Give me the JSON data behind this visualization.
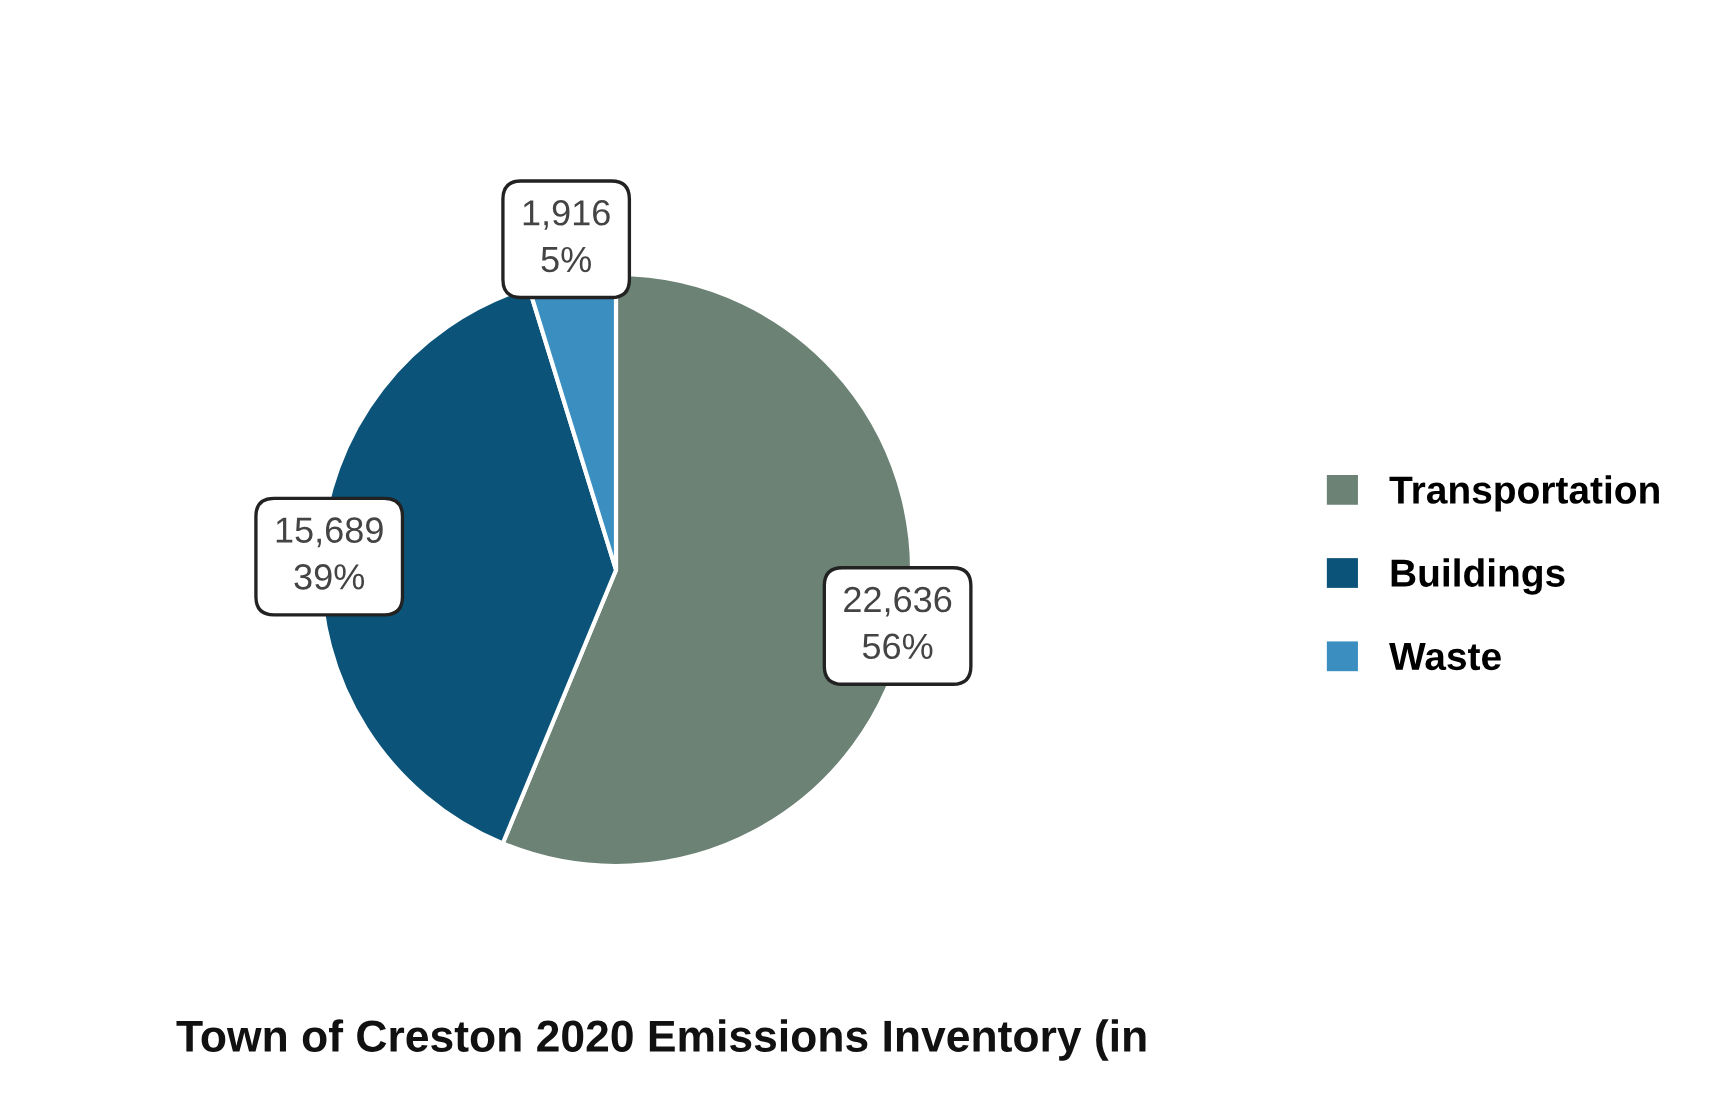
{
  "chart_data": {
    "type": "pie",
    "title": "Town of Creston 2020 Emissions Inventory (in",
    "categories": [
      "Transportation",
      "Buildings",
      "Waste"
    ],
    "values": [
      22636,
      15689,
      1916
    ],
    "colors": [
      "#6b8275",
      "#0b5378",
      "#3b8ec0"
    ],
    "value_labels": [
      "22,636\n56%",
      "15,689\n39%",
      "1,916\n5%"
    ],
    "legend": "right"
  }
}
